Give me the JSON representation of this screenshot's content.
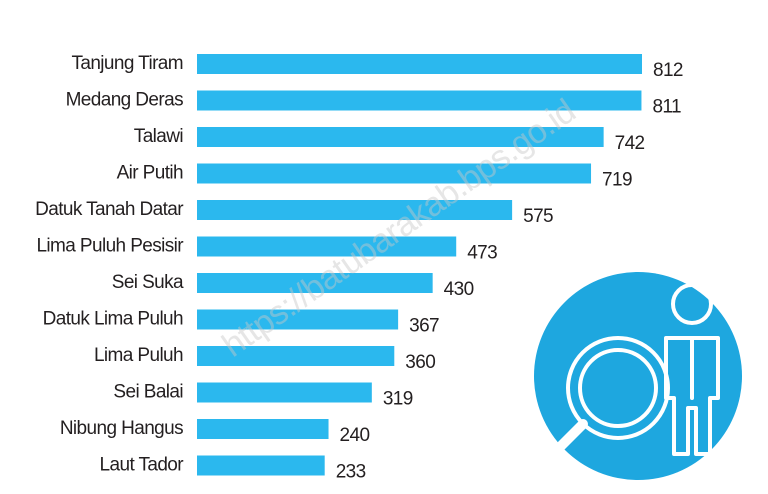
{
  "chart_data": {
    "type": "barh",
    "categories": [
      "Tanjung Tiram",
      "Medang Deras",
      "Talawi",
      "Air Putih",
      "Datuk Tanah Datar",
      "Lima Puluh Pesisir",
      "Sei Suka",
      "Datuk Lima Puluh",
      "Lima Puluh",
      "Sei Balai",
      "Nibung Hangus",
      "Laut Tador"
    ],
    "values": [
      812,
      811,
      742,
      719,
      575,
      473,
      430,
      367,
      360,
      319,
      240,
      233
    ],
    "color": "#2bb8ee",
    "watermark": "https://batubarakab.bps.go.id"
  }
}
